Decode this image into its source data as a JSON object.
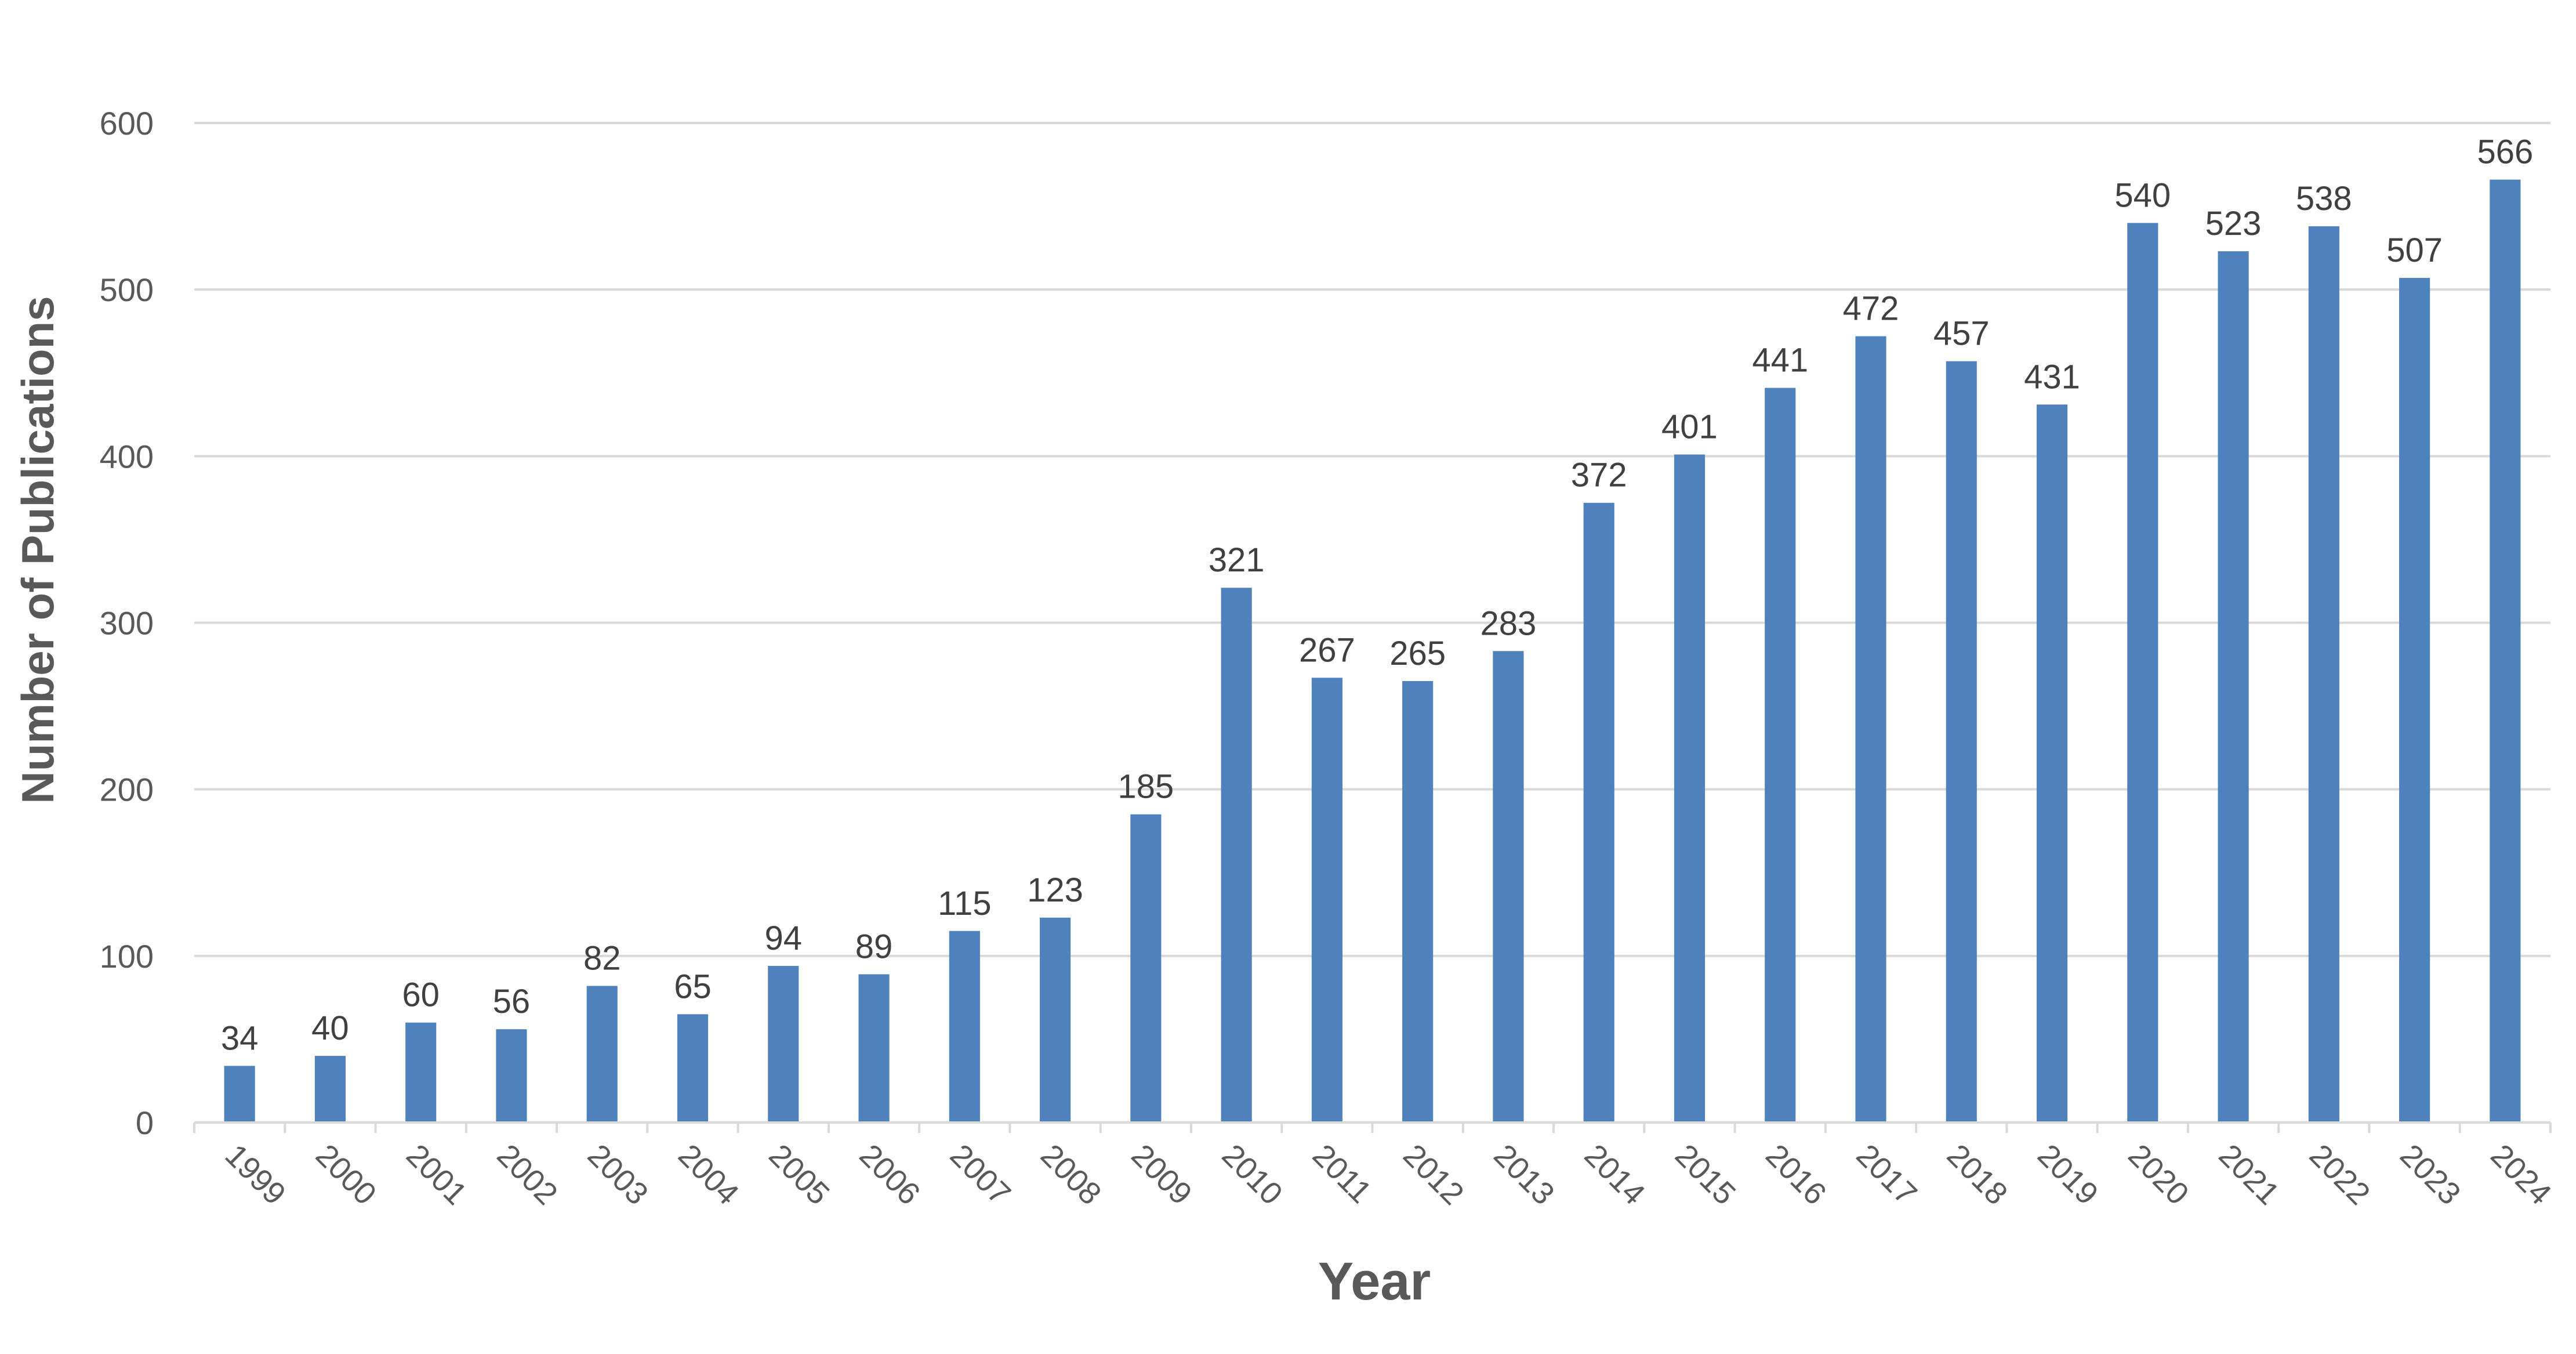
{
  "chart_data": {
    "type": "bar",
    "title": "",
    "xlabel": "Year",
    "ylabel": "Number of Publications",
    "ylim": [
      0,
      600
    ],
    "yticks": [
      0,
      100,
      200,
      300,
      400,
      500,
      600
    ],
    "grid": true,
    "legend": "none",
    "bar_color": "#4f81bd",
    "categories": [
      "1999",
      "2000",
      "2001",
      "2002",
      "2003",
      "2004",
      "2005",
      "2006",
      "2007",
      "2008",
      "2009",
      "2010",
      "2011",
      "2012",
      "2013",
      "2014",
      "2015",
      "2016",
      "2017",
      "2018",
      "2019",
      "2020",
      "2021",
      "2022",
      "2023",
      "2024"
    ],
    "values": [
      34,
      40,
      60,
      56,
      82,
      65,
      94,
      89,
      115,
      123,
      185,
      321,
      267,
      265,
      283,
      372,
      401,
      441,
      472,
      457,
      431,
      540,
      523,
      538,
      507,
      566
    ]
  }
}
